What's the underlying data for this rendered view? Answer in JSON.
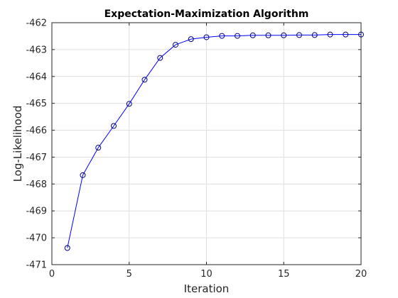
{
  "chart_data": {
    "type": "line",
    "title": "Expectation-Maximization Algorithm",
    "xlabel": "Iteration",
    "ylabel": "Log-Likelihood",
    "xlim": [
      0,
      20
    ],
    "ylim": [
      -471,
      -462
    ],
    "xticks": [
      0,
      5,
      10,
      15,
      20
    ],
    "yticks": [
      -471,
      -470,
      -469,
      -468,
      -467,
      -466,
      -465,
      -464,
      -463,
      -462
    ],
    "grid": true,
    "marker": "circle",
    "series": [
      {
        "color": "#0000ff",
        "marker_color": "#000080",
        "x": [
          1,
          2,
          3,
          4,
          5,
          6,
          7,
          8,
          9,
          10,
          11,
          12,
          13,
          14,
          15,
          16,
          17,
          18,
          19,
          20
        ],
        "y": [
          -470.38,
          -467.67,
          -466.65,
          -465.84,
          -465.02,
          -464.12,
          -463.31,
          -462.82,
          -462.61,
          -462.54,
          -462.49,
          -462.49,
          -462.47,
          -462.47,
          -462.47,
          -462.46,
          -462.46,
          -462.44,
          -462.44,
          -462.44
        ]
      }
    ]
  }
}
